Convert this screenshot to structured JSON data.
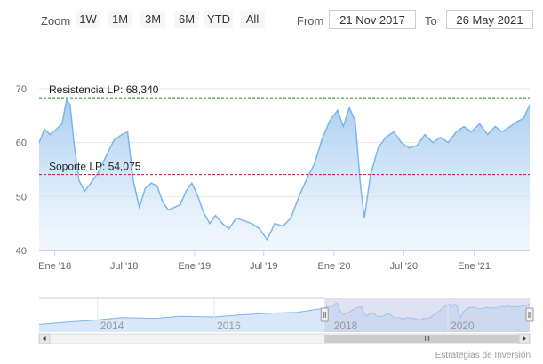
{
  "toolbar": {
    "zoom_label": "Zoom",
    "buttons": [
      "1W",
      "1M",
      "3M",
      "6M",
      "YTD",
      "All"
    ],
    "from_label": "From",
    "from_value": "21 Nov 2017",
    "to_label": "To",
    "to_value": "26 May 2021"
  },
  "colors": {
    "series_line": "#7cb5ec",
    "series_fill_top": "#a9cdf1",
    "series_fill_bottom": "#eaf3fc",
    "resistance_line": "#2e7d32",
    "support_line": "#b71c1c",
    "navigator_mask": "#c3cbe6"
  },
  "chart_data": {
    "type": "area",
    "ylim": [
      40,
      70
    ],
    "yticks": [
      40,
      50,
      60,
      70
    ],
    "xlim": [
      "2017-11-21",
      "2021-05-26"
    ],
    "xticks": [
      {
        "date": "2018-01-01",
        "label": "Ene '18"
      },
      {
        "date": "2018-07-01",
        "label": "Jul '18"
      },
      {
        "date": "2019-01-01",
        "label": "Ene '19"
      },
      {
        "date": "2019-07-01",
        "label": "Jul '19"
      },
      {
        "date": "2020-01-01",
        "label": "Ene '20"
      },
      {
        "date": "2020-07-01",
        "label": "Jul '20"
      },
      {
        "date": "2021-01-01",
        "label": "Ene '21"
      }
    ],
    "grid": true,
    "series": [
      {
        "points": [
          [
            "2017-11-21",
            60.0
          ],
          [
            "2017-12-05",
            62.5
          ],
          [
            "2017-12-20",
            61.5
          ],
          [
            "2018-01-05",
            62.5
          ],
          [
            "2018-01-20",
            63.5
          ],
          [
            "2018-02-01",
            68.0
          ],
          [
            "2018-02-10",
            67.0
          ],
          [
            "2018-02-20",
            60.0
          ],
          [
            "2018-03-05",
            53.0
          ],
          [
            "2018-03-20",
            51.0
          ],
          [
            "2018-04-05",
            52.5
          ],
          [
            "2018-04-25",
            54.5
          ],
          [
            "2018-05-15",
            57.5
          ],
          [
            "2018-06-05",
            60.5
          ],
          [
            "2018-06-25",
            61.5
          ],
          [
            "2018-07-10",
            62.0
          ],
          [
            "2018-07-25",
            53.0
          ],
          [
            "2018-08-10",
            48.0
          ],
          [
            "2018-08-25",
            51.5
          ],
          [
            "2018-09-10",
            52.5
          ],
          [
            "2018-09-25",
            52.0
          ],
          [
            "2018-10-10",
            49.0
          ],
          [
            "2018-10-25",
            47.5
          ],
          [
            "2018-11-10",
            48.0
          ],
          [
            "2018-11-25",
            48.5
          ],
          [
            "2018-12-10",
            51.0
          ],
          [
            "2018-12-25",
            52.5
          ],
          [
            "2019-01-10",
            50.0
          ],
          [
            "2019-01-25",
            47.0
          ],
          [
            "2019-02-10",
            45.0
          ],
          [
            "2019-02-25",
            46.5
          ],
          [
            "2019-03-15",
            45.0
          ],
          [
            "2019-04-01",
            44.0
          ],
          [
            "2019-04-20",
            46.0
          ],
          [
            "2019-05-10",
            45.5
          ],
          [
            "2019-05-30",
            45.0
          ],
          [
            "2019-06-20",
            44.0
          ],
          [
            "2019-07-10",
            42.0
          ],
          [
            "2019-07-30",
            45.0
          ],
          [
            "2019-08-20",
            44.5
          ],
          [
            "2019-09-10",
            46.0
          ],
          [
            "2019-10-01",
            50.0
          ],
          [
            "2019-10-20",
            53.0
          ],
          [
            "2019-11-10",
            56.0
          ],
          [
            "2019-11-30",
            60.5
          ],
          [
            "2019-12-20",
            64.0
          ],
          [
            "2020-01-10",
            66.0
          ],
          [
            "2020-01-25",
            63.0
          ],
          [
            "2020-02-10",
            66.5
          ],
          [
            "2020-02-25",
            64.0
          ],
          [
            "2020-03-10",
            52.0
          ],
          [
            "2020-03-20",
            46.0
          ],
          [
            "2020-04-05",
            54.0
          ],
          [
            "2020-04-25",
            59.0
          ],
          [
            "2020-05-15",
            61.0
          ],
          [
            "2020-06-05",
            62.0
          ],
          [
            "2020-06-25",
            60.0
          ],
          [
            "2020-07-15",
            59.0
          ],
          [
            "2020-08-05",
            59.5
          ],
          [
            "2020-08-25",
            61.5
          ],
          [
            "2020-09-15",
            60.0
          ],
          [
            "2020-10-05",
            61.0
          ],
          [
            "2020-10-25",
            60.0
          ],
          [
            "2020-11-15",
            62.0
          ],
          [
            "2020-12-05",
            63.0
          ],
          [
            "2020-12-25",
            62.0
          ],
          [
            "2021-01-15",
            63.5
          ],
          [
            "2021-02-05",
            61.5
          ],
          [
            "2021-02-25",
            63.0
          ],
          [
            "2021-03-15",
            62.0
          ],
          [
            "2021-04-05",
            63.0
          ],
          [
            "2021-04-25",
            64.0
          ],
          [
            "2021-05-10",
            64.5
          ],
          [
            "2021-05-26",
            67.0
          ]
        ]
      }
    ],
    "annotations": [
      {
        "label": "Resistencia LP: 68,340",
        "value": 68.34,
        "style": "dashed",
        "color": "#2e7d32"
      },
      {
        "label": "Soporte LP: 54,075",
        "value": 54.075,
        "style": "dashed",
        "color": "#b71c1c"
      }
    ],
    "navigator": {
      "xlim": [
        "2013-01-01",
        "2021-05-26"
      ],
      "xticks": [
        {
          "date": "2014-01-01",
          "label": "2014"
        },
        {
          "date": "2016-01-01",
          "label": "2016"
        },
        {
          "date": "2018-01-01",
          "label": "2018"
        },
        {
          "date": "2020-01-01",
          "label": "2020"
        }
      ],
      "selection": [
        "2017-11-21",
        "2021-05-26"
      ]
    }
  },
  "credit": "Estrategias de Inversión"
}
